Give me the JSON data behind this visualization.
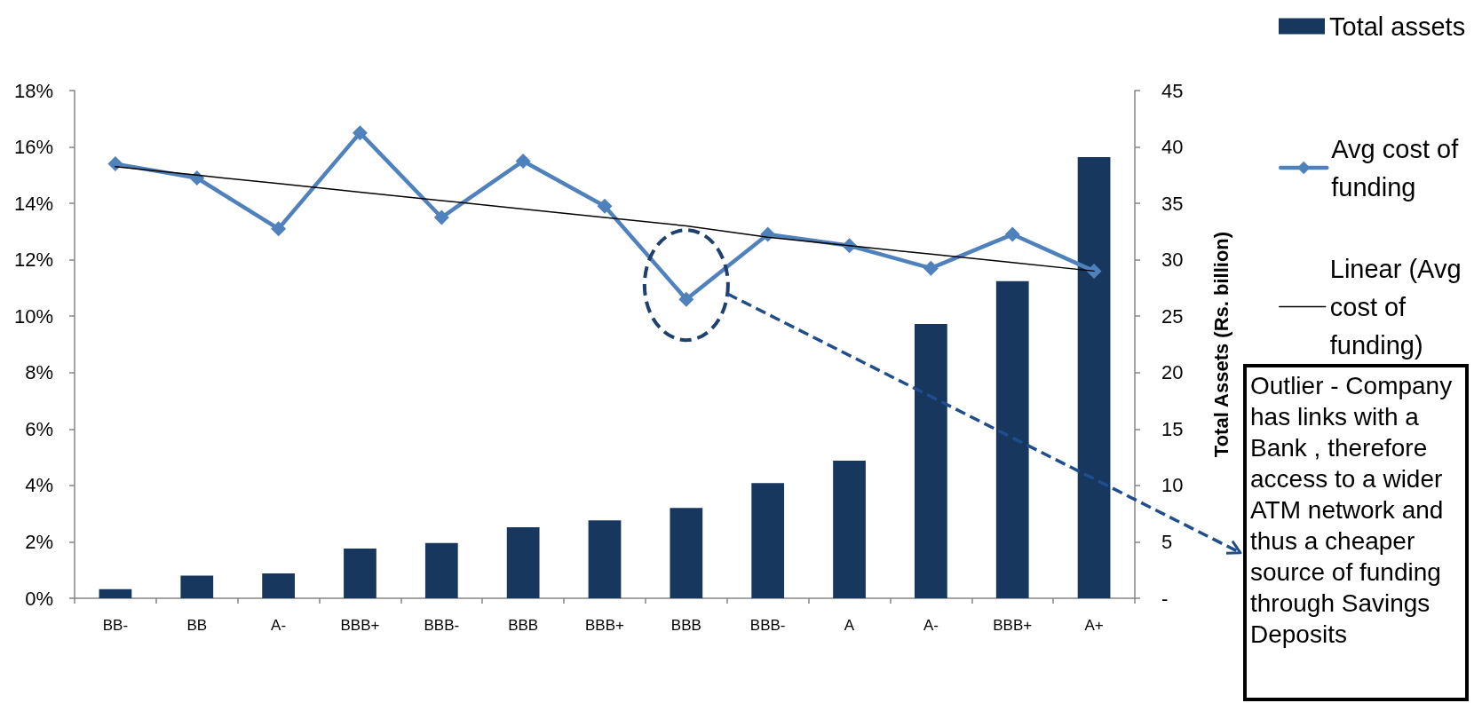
{
  "chart_data": {
    "type": "bar",
    "categories": [
      "BB-",
      "BB",
      "A-",
      "BBB+",
      "BBB-",
      "BBB",
      "BBB+",
      "BBB",
      "BBB-",
      "A",
      "A-",
      "BBB+",
      "A+"
    ],
    "series": [
      {
        "name": "Total assets",
        "axis": "y2",
        "color": "#17375e",
        "values": [
          0.8,
          2.0,
          2.2,
          4.4,
          4.9,
          6.3,
          6.9,
          8.0,
          10.2,
          12.2,
          24.3,
          28.1,
          39.1
        ]
      },
      {
        "name": "Avg cost of funding",
        "type": "line",
        "color": "#4f81bd",
        "marker": "diamond",
        "line_style": "solid",
        "values": [
          15.4,
          14.9,
          13.1,
          16.5,
          13.5,
          15.5,
          13.9,
          10.6,
          12.9,
          12.5,
          11.7,
          12.9,
          11.6
        ]
      },
      {
        "name": "Linear (Avg cost of funding)",
        "type": "line",
        "color": "#000000",
        "marker": "none",
        "line_style": "solid",
        "values": [
          15.3,
          15.0,
          14.7,
          14.4,
          14.1,
          13.8,
          13.5,
          13.2,
          12.8,
          12.5,
          12.2,
          11.9,
          11.6
        ]
      }
    ],
    "ylim": [
      0,
      18
    ],
    "yticks": [
      {
        "value": 0,
        "label": "0%"
      },
      {
        "value": 2,
        "label": "2%"
      },
      {
        "value": 4,
        "label": "4%"
      },
      {
        "value": 6,
        "label": "6%"
      },
      {
        "value": 8,
        "label": "8%"
      },
      {
        "value": 10,
        "label": "10%"
      },
      {
        "value": 12,
        "label": "12%"
      },
      {
        "value": 14,
        "label": "14%"
      },
      {
        "value": 16,
        "label": "16%"
      },
      {
        "value": 18,
        "label": "18%"
      }
    ],
    "y2lim": [
      0,
      45
    ],
    "y2ticks": [
      {
        "value": 0,
        "label": "-"
      },
      5,
      10,
      15,
      20,
      25,
      30,
      35,
      40,
      45
    ],
    "y2label": "Total Assets (Rs. billion)",
    "legend": "right",
    "annotations": [
      "Outlier - Company has links with a Bank , therefore access to a wider ATM network and thus a cheaper source of funding through Savings Deposits"
    ]
  }
}
